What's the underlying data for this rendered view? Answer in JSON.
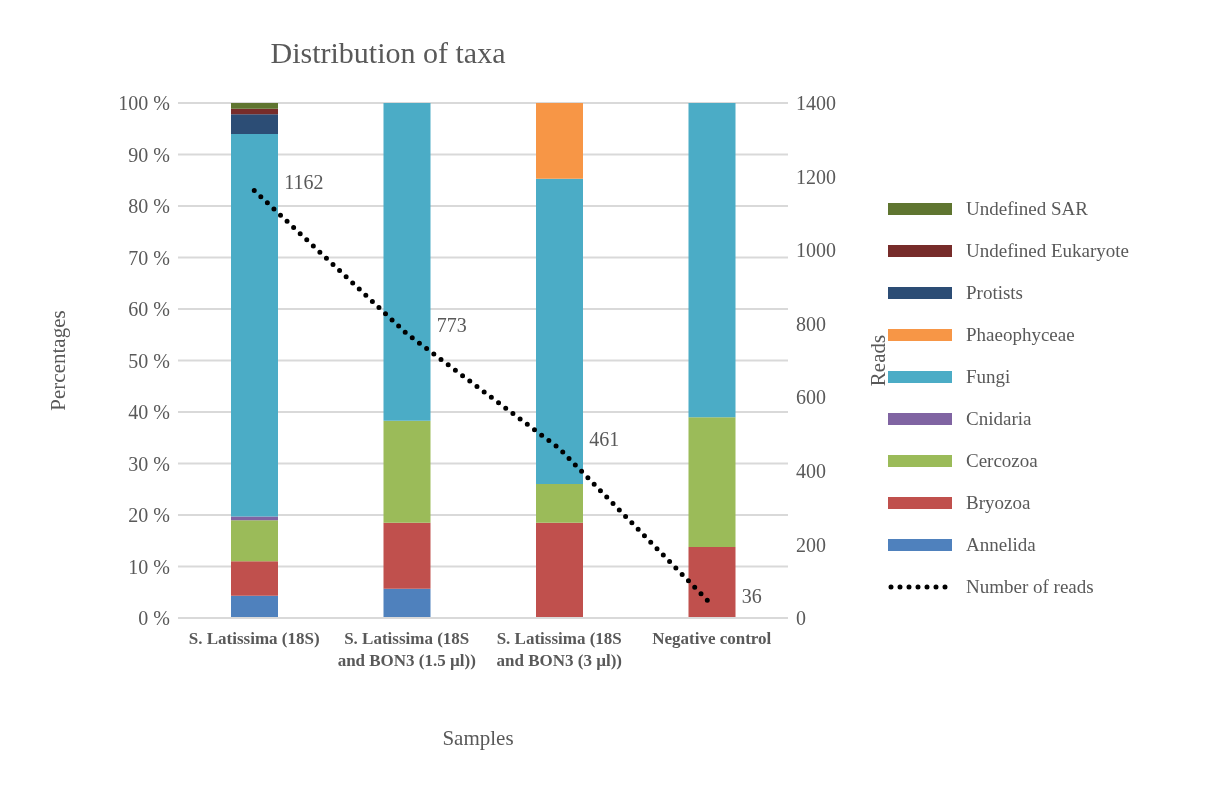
{
  "chart_data": {
    "type": "bar",
    "title": "Distribution of taxa",
    "xlabel": "Samples",
    "ylabel": "Percentages",
    "y2label": "Reads",
    "stacked": true,
    "grid": "y",
    "legend": "right",
    "categories": [
      "S. Latissima (18S)",
      "S. Latissima (18S and BON3 (1.5 µl))",
      "S. Latissima (18S and BON3 (3 µl))",
      "Negative control"
    ],
    "ylim": [
      0,
      100
    ],
    "yticks": [
      {
        "value": 0,
        "label": "0 %"
      },
      {
        "value": 10,
        "label": "10 %"
      },
      {
        "value": 20,
        "label": "20 %"
      },
      {
        "value": 30,
        "label": "30 %"
      },
      {
        "value": 40,
        "label": "40 %"
      },
      {
        "value": 50,
        "label": "50 %"
      },
      {
        "value": 60,
        "label": "60 %"
      },
      {
        "value": 70,
        "label": "70 %"
      },
      {
        "value": 80,
        "label": "80 %"
      },
      {
        "value": 90,
        "label": "90 %"
      },
      {
        "value": 100,
        "label": "100 %"
      }
    ],
    "y2lim": [
      0,
      1400
    ],
    "y2ticks": [
      0,
      200,
      400,
      600,
      800,
      1000,
      1200,
      1400
    ],
    "series": [
      {
        "name": "Annelida",
        "color": "#4f81bd",
        "values": [
          4.3,
          5.7,
          null,
          null
        ]
      },
      {
        "name": "Bryozoa",
        "color": "#c0504d",
        "values": [
          6.7,
          12.8,
          18.5,
          13.8
        ]
      },
      {
        "name": "Cercozoa",
        "color": "#9bbb59",
        "values": [
          8,
          19.8,
          7.5,
          25.2
        ]
      },
      {
        "name": "Cnidaria",
        "color": "#8064a2",
        "values": [
          0.7,
          null,
          null,
          null
        ]
      },
      {
        "name": "Fungi",
        "color": "#4bacc6",
        "values": [
          74.3,
          61.7,
          59.3,
          61
        ]
      },
      {
        "name": "Phaeophyceae",
        "color": "#f79646",
        "values": [
          null,
          null,
          14.7,
          null
        ]
      },
      {
        "name": "Protists",
        "color": "#2c4d75",
        "values": [
          3.8,
          null,
          null,
          null
        ]
      },
      {
        "name": "Undefined Eukaryote",
        "color": "#772c2a",
        "values": [
          1.1,
          null,
          null,
          null
        ]
      },
      {
        "name": "Undefined SAR",
        "color": "#5f7530",
        "values": [
          1.1,
          null,
          null,
          null
        ]
      },
      {
        "name": "Number of reads",
        "type": "line",
        "axis": "y2",
        "color": "#000000",
        "line_style": "dotted",
        "marker": "none",
        "values": [
          1162,
          773,
          461,
          36
        ],
        "value_labels": [
          "1162",
          "773",
          "461",
          "36"
        ]
      }
    ]
  }
}
